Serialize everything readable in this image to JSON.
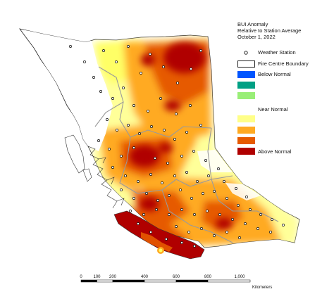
{
  "title": {
    "line1": "BUI Anomaly",
    "line2": "Relative to Station Average",
    "line3": "October 1, 2022"
  },
  "legend": {
    "weather_station": "Weather Station",
    "fire_centre_boundary": "Fire Centre Boundary",
    "below_normal": "Below Normal",
    "near_normal": "Near Normal",
    "above_normal": "Above Normal",
    "swatch_colors": [
      "#0055ff",
      "#00a084",
      "#99ee77",
      "#ffff88",
      "#ffaa22",
      "#e65a00",
      "#b00000"
    ]
  },
  "scale_bar": {
    "ticks": [
      "0",
      "100",
      "200",
      "400",
      "600",
      "800",
      "1,000"
    ],
    "tick_values": [
      0,
      100,
      200,
      400,
      600,
      800,
      1000
    ],
    "unit": "Kilometers"
  },
  "colors": {
    "above_normal": "#b00000",
    "near_normal": "#ffff88",
    "below_normal": "#0055ff",
    "fire_centre_boundary": "#9a9a9a"
  }
}
